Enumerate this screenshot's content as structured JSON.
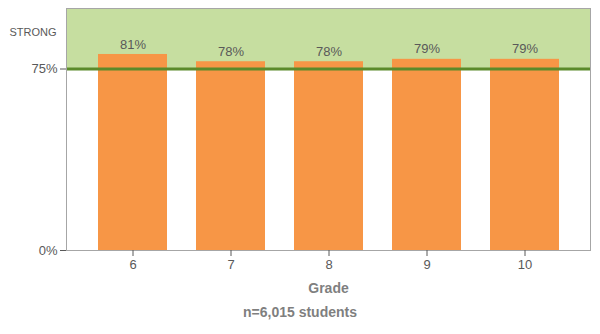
{
  "chart_data": {
    "type": "bar",
    "x_label": "Grade",
    "caption": "n=6,015 students",
    "categories": [
      "6",
      "7",
      "8",
      "9",
      "10"
    ],
    "values": [
      81,
      78,
      78,
      79,
      79
    ],
    "value_labels": [
      "81%",
      "78%",
      "78%",
      "79%",
      "79%"
    ],
    "color": "#f79646",
    "data_labels": true,
    "ylim": [
      0,
      100
    ],
    "yticks": [
      {
        "value": 0,
        "label": "0%"
      },
      {
        "value": 75,
        "label": "75%"
      }
    ],
    "bands": [
      {
        "y0": 75,
        "y1": 100,
        "label": "STRONG",
        "color": "#c6dea0"
      }
    ]
  }
}
